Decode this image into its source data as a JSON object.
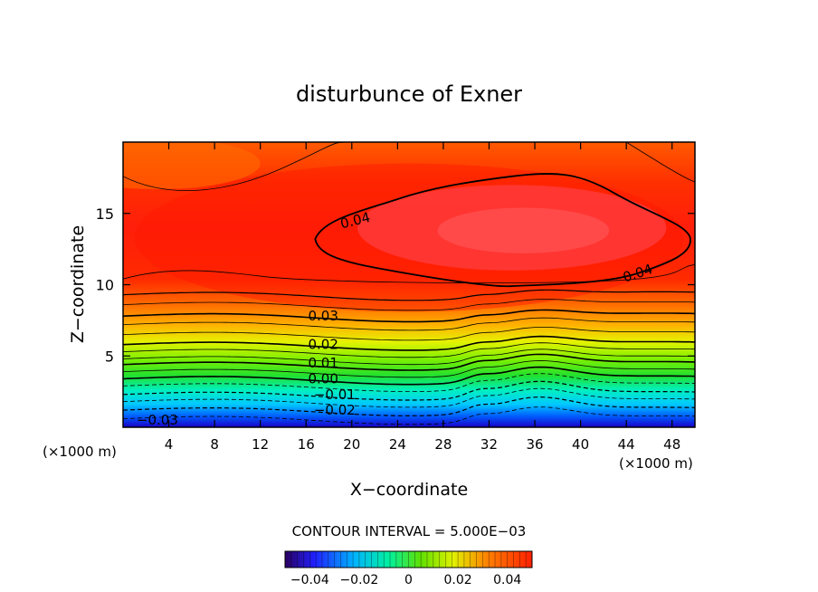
{
  "chart_data": {
    "type": "contour",
    "title": "disturbunce of Exner",
    "xlabel": "X−coordinate",
    "ylabel": "Z−coordinate",
    "x_unit_left": "(×1000 m)",
    "x_unit_right": "(×1000 m)",
    "xlim": [
      0,
      50
    ],
    "ylim": [
      0,
      20
    ],
    "x_ticks": [
      4,
      8,
      12,
      16,
      20,
      24,
      28,
      32,
      36,
      40,
      44,
      48
    ],
    "y_ticks": [
      5,
      10,
      15
    ],
    "contour_interval_text": "CONTOUR INTERVAL = 5.000E−03",
    "contour_interval": 0.005,
    "contour_labels": [
      {
        "text": "0.04",
        "x": 20.3,
        "y": 14.5
      },
      {
        "text": "0.04",
        "x": 45.0,
        "y": 10.8
      },
      {
        "text": "0.03",
        "x": 17.5,
        "y": 7.8
      },
      {
        "text": "0.02",
        "x": 17.5,
        "y": 5.8
      },
      {
        "text": "0.01",
        "x": 17.5,
        "y": 4.5
      },
      {
        "text": "0.00",
        "x": 17.5,
        "y": 3.4
      },
      {
        "text": "−0.01",
        "x": 18.5,
        "y": 2.3
      },
      {
        "text": "−0.02",
        "x": 18.5,
        "y": 1.2
      },
      {
        "text": "−0.03",
        "x": 3.0,
        "y": 0.5
      }
    ],
    "colorbar": {
      "ticks": [
        -0.04,
        -0.02,
        0,
        0.02,
        0.04
      ],
      "tick_labels": [
        "−0.04",
        "−0.02",
        "0",
        "0.02",
        "0.04"
      ],
      "range": [
        -0.05,
        0.05
      ]
    }
  }
}
